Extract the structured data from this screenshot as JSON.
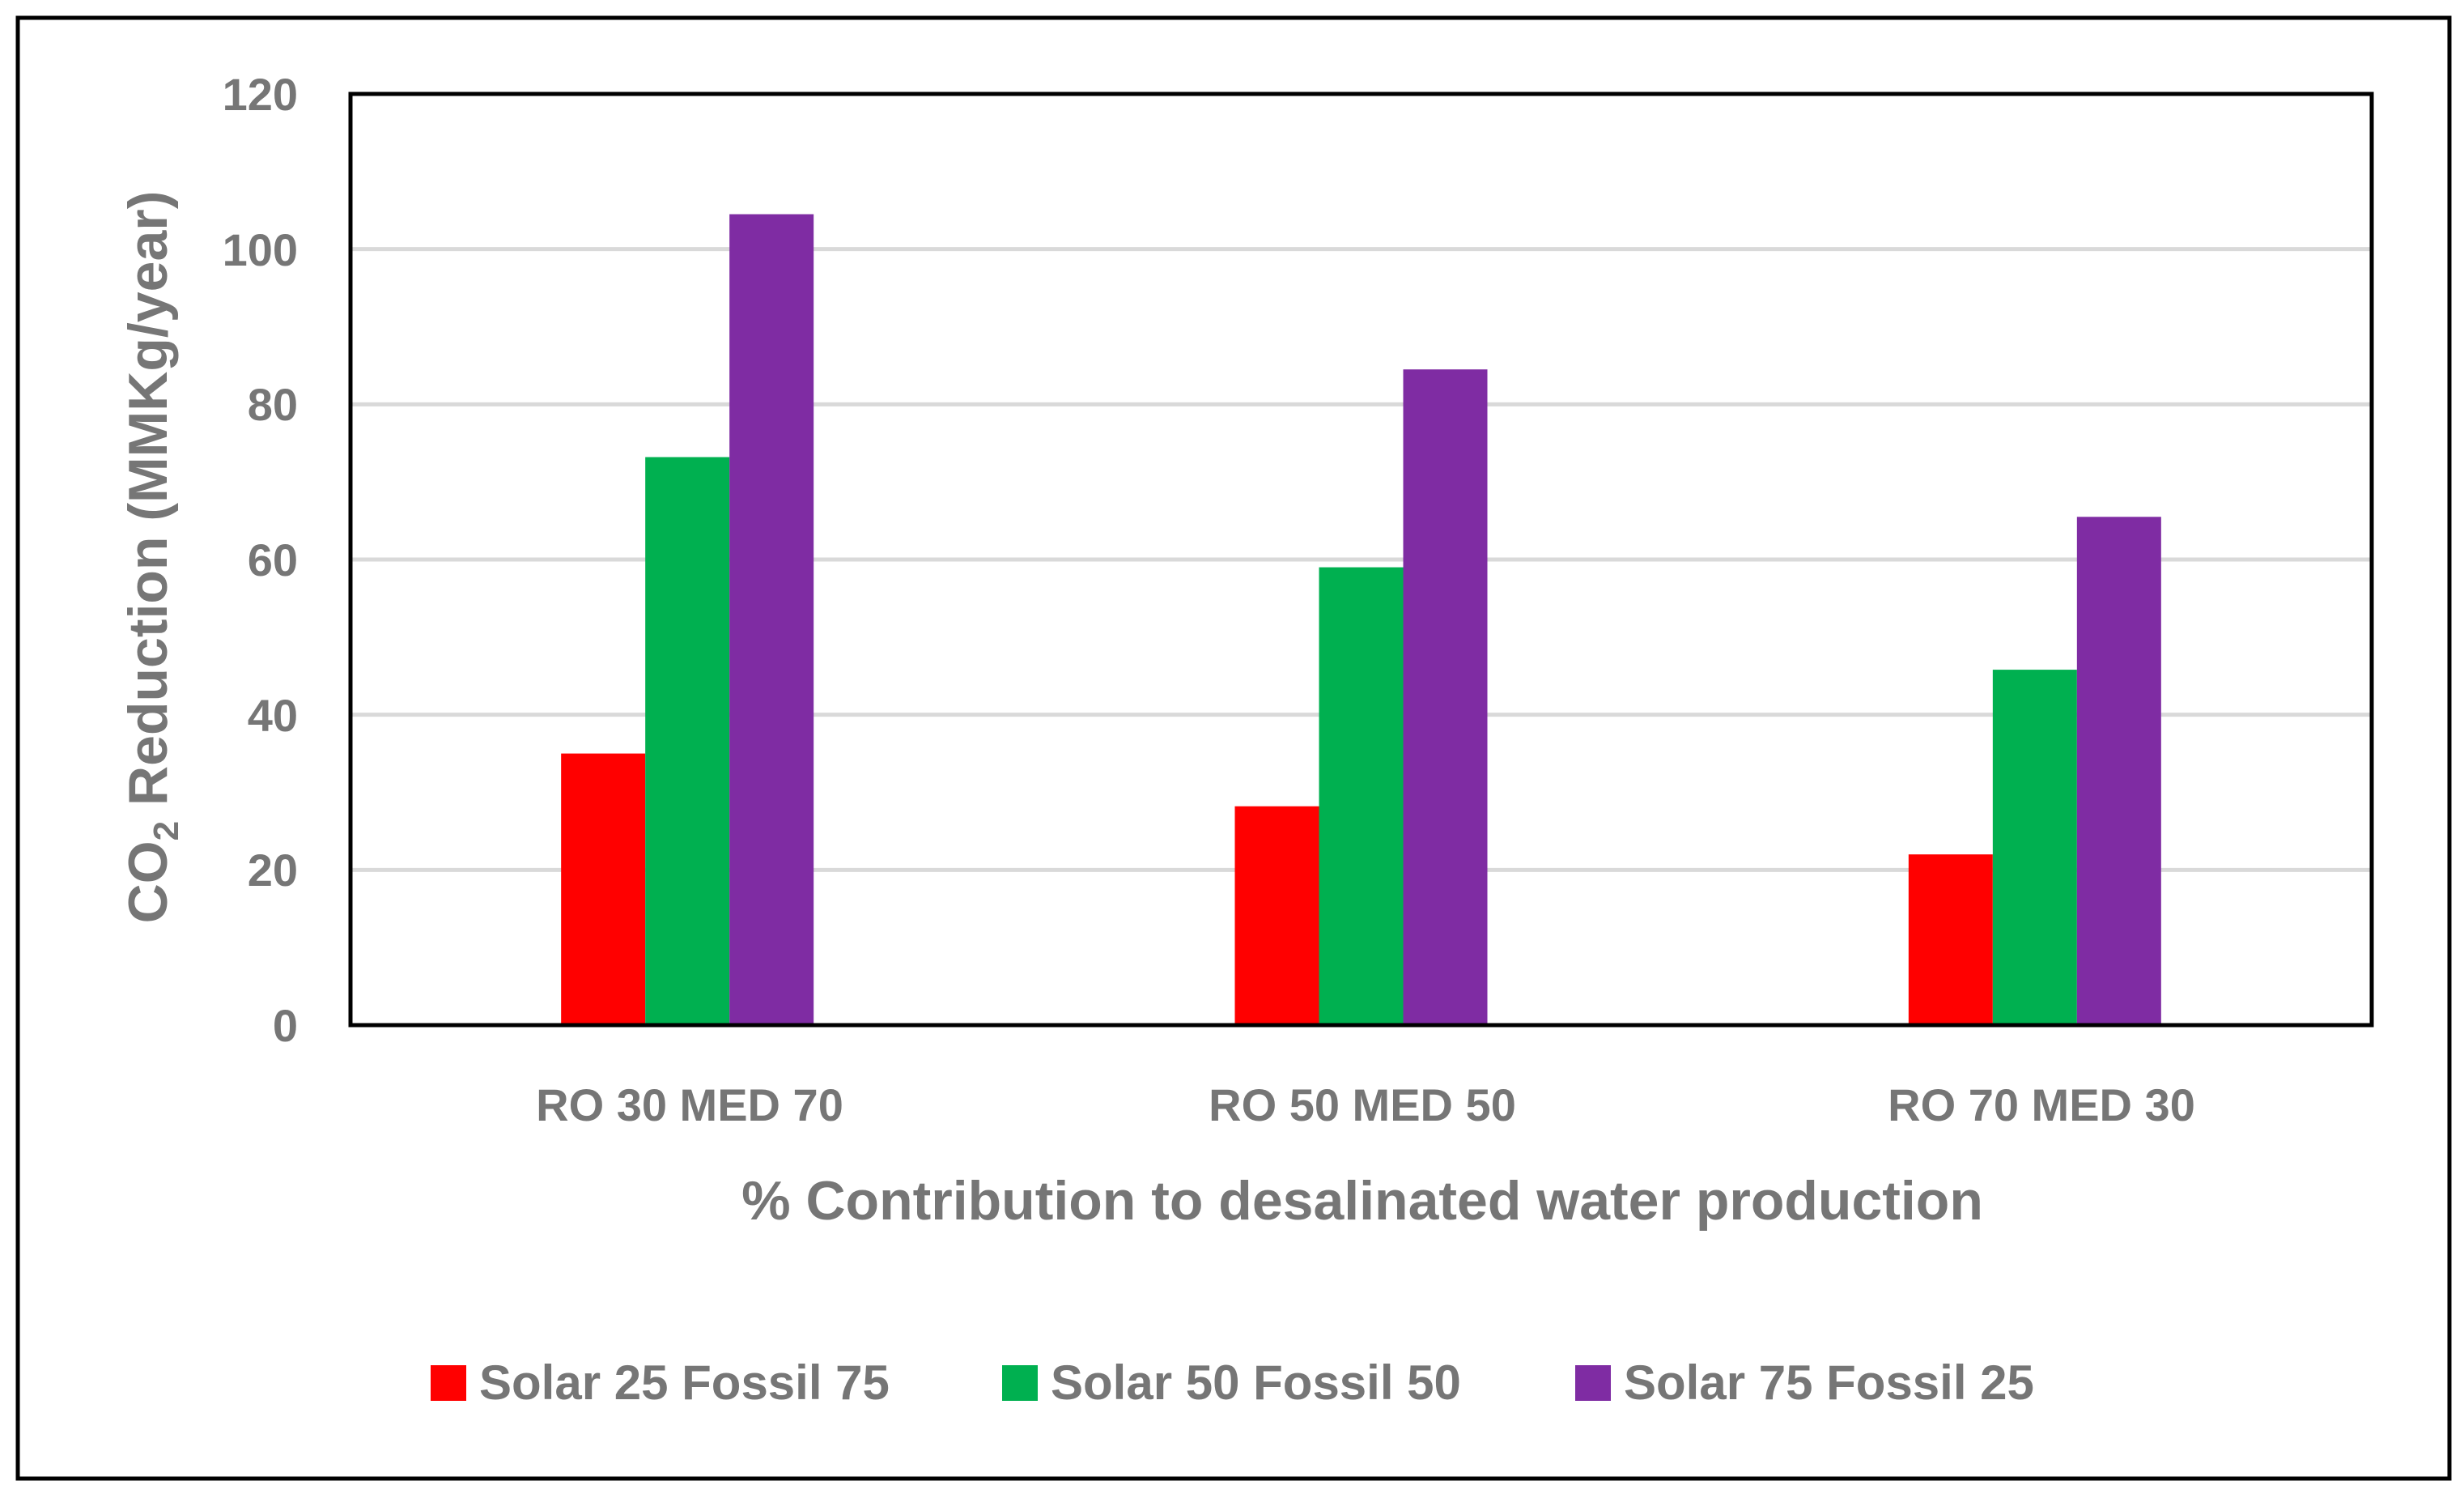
{
  "chart_data": {
    "type": "bar",
    "title": "",
    "categories": [
      "RO 30 MED 70",
      "RO 50 MED 50",
      "RO 70 MED 30"
    ],
    "series": [
      {
        "name": "Solar 25 Fossil 75",
        "color": "#ff0000",
        "values": [
          35,
          28.2,
          22
        ]
      },
      {
        "name": "Solar 50 Fossil 50",
        "color": "#00b050",
        "values": [
          73.2,
          59,
          45.8
        ]
      },
      {
        "name": "Solar 75 Fossil 25",
        "color": "#7f2ca3",
        "values": [
          104.5,
          84.5,
          65.5
        ]
      }
    ],
    "xlabel": "% Contribution to desalinated water production",
    "ylabel": {
      "main": "CO",
      "subscript": "2",
      "rest": " Reduction (MMKg/year)"
    },
    "ylim": [
      0,
      120
    ],
    "yticks": [
      "0",
      "20",
      "40",
      "60",
      "80",
      "100",
      "120"
    ],
    "grid": true,
    "legend_position": "bottom"
  }
}
